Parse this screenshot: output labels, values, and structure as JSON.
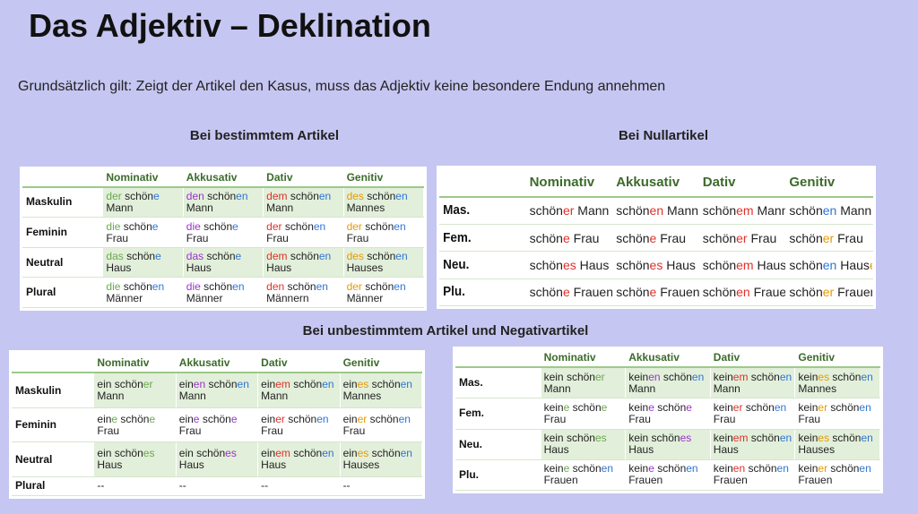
{
  "title": "Das Adjektiv – Deklination",
  "intro": "Grundsätzlich gilt: Zeigt der Artikel den Kasus, muss das Adjektiv keine besondere Endung annehmen",
  "colors": {
    "n": "#6aa84f",
    "a": "#9933cc",
    "d": "#e0302a",
    "g": "#e69a00",
    "e": "#2e75d6"
  },
  "tables": [
    {
      "heading": "Bei bestimmtem Artikel",
      "columns": [
        "Nominativ",
        "Akkusativ",
        "Dativ",
        "Genitiv"
      ],
      "rows": [
        {
          "label": "Maskulin",
          "cells": [
            [
              [
                "der",
                "n"
              ],
              " schön",
              [
                "e",
                "e"
              ],
              " Mann"
            ],
            [
              [
                "den",
                "a"
              ],
              " schön",
              [
                "en",
                "e"
              ],
              " Mann"
            ],
            [
              [
                "dem",
                "d"
              ],
              " schön",
              [
                "en",
                "e"
              ],
              " Mann"
            ],
            [
              [
                "des",
                "g"
              ],
              " schön",
              [
                "en",
                "e"
              ],
              " Mannes"
            ]
          ]
        },
        {
          "label": "Feminin",
          "cells": [
            [
              [
                "die",
                "n"
              ],
              " schön",
              [
                "e",
                "e"
              ],
              " Frau"
            ],
            [
              [
                "die",
                "a"
              ],
              " schön",
              [
                "e",
                "e"
              ],
              " Frau"
            ],
            [
              [
                "der",
                "d"
              ],
              " schön",
              [
                "en",
                "e"
              ],
              " Frau"
            ],
            [
              [
                "der",
                "g"
              ],
              " schön",
              [
                "en",
                "e"
              ],
              " Frau"
            ]
          ]
        },
        {
          "label": "Neutral",
          "cells": [
            [
              [
                "das",
                "n"
              ],
              " schön",
              [
                "e",
                "e"
              ],
              " Haus"
            ],
            [
              [
                "das",
                "a"
              ],
              " schön",
              [
                "e",
                "e"
              ],
              " Haus"
            ],
            [
              [
                "dem",
                "d"
              ],
              " schön",
              [
                "en",
                "e"
              ],
              " Haus"
            ],
            [
              [
                "des",
                "g"
              ],
              " schön",
              [
                "en",
                "e"
              ],
              " Hauses"
            ]
          ]
        },
        {
          "label": "Plural",
          "cells": [
            [
              [
                "die",
                "n"
              ],
              " schön",
              [
                "en",
                "e"
              ],
              " Männer"
            ],
            [
              [
                "die",
                "a"
              ],
              " schön",
              [
                "en",
                "e"
              ],
              " Männer"
            ],
            [
              [
                "den",
                "d"
              ],
              " schön",
              [
                "en",
                "e"
              ],
              " Männern"
            ],
            [
              [
                "der",
                "g"
              ],
              " schön",
              [
                "en",
                "e"
              ],
              " Männer"
            ]
          ]
        }
      ]
    },
    {
      "heading": "Bei Nullartikel",
      "columns": [
        "Nominativ",
        "Akkusativ",
        "Dativ",
        "Genitiv"
      ],
      "rows": [
        {
          "label": "Mas.",
          "cells": [
            [
              "schön",
              [
                "er",
                "d"
              ],
              " Mann"
            ],
            [
              "schön",
              [
                "en",
                "d"
              ],
              " Mann"
            ],
            [
              "schön",
              [
                "em",
                "d"
              ],
              " Mann"
            ],
            [
              "schön",
              [
                "en",
                "e"
              ],
              " Mann",
              [
                "es",
                "g"
              ]
            ]
          ]
        },
        {
          "label": "Fem.",
          "cells": [
            [
              "schön",
              [
                "e",
                "d"
              ],
              " Frau"
            ],
            [
              "schön",
              [
                "e",
                "d"
              ],
              " Frau"
            ],
            [
              "schön",
              [
                "er",
                "d"
              ],
              " Frau"
            ],
            [
              "schön",
              [
                "er",
                "g"
              ],
              " Frau"
            ]
          ]
        },
        {
          "label": "Neu.",
          "cells": [
            [
              "schön",
              [
                "es",
                "d"
              ],
              " Haus"
            ],
            [
              "schön",
              [
                "es",
                "d"
              ],
              " Haus"
            ],
            [
              "schön",
              [
                "em",
                "d"
              ],
              " Haus"
            ],
            [
              "schön",
              [
                "en",
                "e"
              ],
              " Haus",
              [
                "es",
                "g"
              ]
            ]
          ]
        },
        {
          "label": "Plu.",
          "cells": [
            [
              "schön",
              [
                "e",
                "d"
              ],
              " Frauen"
            ],
            [
              "schön",
              [
                "e",
                "d"
              ],
              " Frauen"
            ],
            [
              "schön",
              [
                "en",
                "d"
              ],
              " Frauen"
            ],
            [
              "schön",
              [
                "er",
                "g"
              ],
              " Frauen"
            ]
          ]
        }
      ]
    },
    {
      "heading": "Bei unbestimmtem Artikel und Negativartikel",
      "columns": [
        "Nominativ",
        "Akkusativ",
        "Dativ",
        "Genitiv"
      ],
      "rows": [
        {
          "label": "Maskulin",
          "cells": [
            [
              "ein schön",
              [
                "er",
                "n"
              ],
              " Mann"
            ],
            [
              "ein",
              [
                "en",
                "a"
              ],
              " schön",
              [
                "en",
                "e"
              ],
              " Mann"
            ],
            [
              "ein",
              [
                "em",
                "d"
              ],
              " schön",
              [
                "en",
                "e"
              ],
              " Mann"
            ],
            [
              "ein",
              [
                "es",
                "g"
              ],
              " schön",
              [
                "en",
                "e"
              ],
              " Mannes"
            ]
          ]
        },
        {
          "label": "Feminin",
          "cells": [
            [
              "ein",
              [
                "e",
                "n"
              ],
              " schön",
              [
                "e",
                "n"
              ],
              " Frau"
            ],
            [
              "ein",
              [
                "e",
                "a"
              ],
              " schön",
              [
                "e",
                "a"
              ],
              " Frau"
            ],
            [
              "ein",
              [
                "er",
                "d"
              ],
              " schön",
              [
                "en",
                "e"
              ],
              " Frau"
            ],
            [
              "ein",
              [
                "er",
                "g"
              ],
              " schön",
              [
                "en",
                "e"
              ],
              " Frau"
            ]
          ]
        },
        {
          "label": "Neutral",
          "cells": [
            [
              "ein schön",
              [
                "es",
                "n"
              ],
              " Haus"
            ],
            [
              "ein schön",
              [
                "es",
                "a"
              ],
              " Haus"
            ],
            [
              "ein",
              [
                "em",
                "d"
              ],
              " schön",
              [
                "en",
                "e"
              ],
              " Haus"
            ],
            [
              "ein",
              [
                "es",
                "g"
              ],
              " schön",
              [
                "en",
                "e"
              ],
              " Hauses"
            ]
          ]
        },
        {
          "label": "Plural",
          "cells": [
            [
              "--"
            ],
            [
              "--"
            ],
            [
              "--"
            ],
            [
              "--"
            ]
          ]
        }
      ]
    },
    {
      "columns": [
        "Nominativ",
        "Akkusativ",
        "Dativ",
        "Genitiv"
      ],
      "rows": [
        {
          "label": "Mas.",
          "cells": [
            [
              "kein schön",
              [
                "er",
                "n"
              ],
              " Mann"
            ],
            [
              "kein",
              [
                "en",
                "a"
              ],
              " schön",
              [
                "en",
                "e"
              ],
              " Mann"
            ],
            [
              "kein",
              [
                "em",
                "d"
              ],
              " schön",
              [
                "en",
                "e"
              ],
              " Mann"
            ],
            [
              "kein",
              [
                "es",
                "g"
              ],
              " schön",
              [
                "en",
                "e"
              ],
              " Mannes"
            ]
          ]
        },
        {
          "label": "Fem.",
          "cells": [
            [
              "kein",
              [
                "e",
                "n"
              ],
              " schön",
              [
                "e",
                "n"
              ],
              " Frau"
            ],
            [
              "kein",
              [
                "e",
                "a"
              ],
              " schön",
              [
                "e",
                "a"
              ],
              " Frau"
            ],
            [
              "kein",
              [
                "er",
                "d"
              ],
              " schön",
              [
                "en",
                "e"
              ],
              " Frau"
            ],
            [
              "kein",
              [
                "er",
                "g"
              ],
              " schön",
              [
                "en",
                "e"
              ],
              " Frau"
            ]
          ]
        },
        {
          "label": "Neu.",
          "cells": [
            [
              "kein schön",
              [
                "es",
                "n"
              ],
              " Haus"
            ],
            [
              "kein schön",
              [
                "es",
                "a"
              ],
              " Haus"
            ],
            [
              "kein",
              [
                "em",
                "d"
              ],
              " schön",
              [
                "en",
                "e"
              ],
              " Haus"
            ],
            [
              "kein",
              [
                "es",
                "g"
              ],
              " schön",
              [
                "en",
                "e"
              ],
              " Hauses"
            ]
          ]
        },
        {
          "label": "Plu.",
          "cells": [
            [
              "kein",
              [
                "e",
                "n"
              ],
              " schön",
              [
                "en",
                "e"
              ],
              " Frauen"
            ],
            [
              "kein",
              [
                "e",
                "a"
              ],
              " schön",
              [
                "en",
                "e"
              ],
              " Frauen"
            ],
            [
              "kein",
              [
                "en",
                "d"
              ],
              " schön",
              [
                "en",
                "e"
              ],
              " Frauen"
            ],
            [
              "kein",
              [
                "er",
                "g"
              ],
              " schön",
              [
                "en",
                "e"
              ],
              " Frauen"
            ]
          ]
        }
      ]
    }
  ]
}
